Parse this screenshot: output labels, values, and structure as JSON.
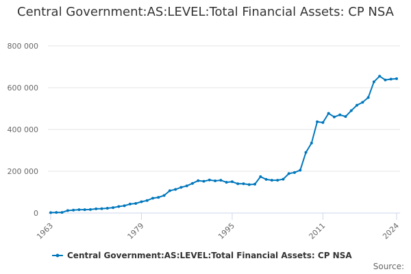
{
  "chart_data": {
    "type": "line",
    "title": "Central Government:AS:LEVEL:Total Financial Assets: CP NSA",
    "xlabel": "",
    "ylabel": "",
    "ylim": [
      0,
      800000
    ],
    "yticks": [
      0,
      200000,
      400000,
      600000,
      800000
    ],
    "ytick_labels": [
      "0",
      "200 000",
      "400 000",
      "600 000",
      "800 000"
    ],
    "xticks": [
      1963,
      1979,
      1995,
      2011,
      2024
    ],
    "xtick_labels": [
      "1963",
      "1979",
      "1995",
      "2011",
      "2024"
    ],
    "grid": true,
    "color": "#0077bb",
    "x": [
      1963,
      1964,
      1965,
      1966,
      1967,
      1968,
      1969,
      1970,
      1971,
      1972,
      1973,
      1974,
      1975,
      1976,
      1977,
      1978,
      1979,
      1980,
      1981,
      1982,
      1983,
      1984,
      1985,
      1986,
      1987,
      1988,
      1989,
      1990,
      1991,
      1992,
      1993,
      1994,
      1995,
      1996,
      1997,
      1998,
      1999,
      2000,
      2001,
      2002,
      2003,
      2004,
      2005,
      2006,
      2007,
      2008,
      2009,
      2010,
      2011,
      2012,
      2013,
      2014,
      2015,
      2016,
      2017,
      2018,
      2019,
      2020,
      2021,
      2022,
      2023,
      2024
    ],
    "series": [
      {
        "name": "Central Government:AS:LEVEL:Total Financial Assets: CP NSA",
        "values": [
          2000,
          3000,
          3000,
          12000,
          14000,
          16000,
          16000,
          17000,
          20000,
          21000,
          23000,
          26000,
          31000,
          35000,
          43000,
          46000,
          54000,
          60000,
          71000,
          75000,
          84000,
          107000,
          113000,
          123000,
          130000,
          142000,
          155000,
          152000,
          158000,
          154000,
          157000,
          147000,
          150000,
          140000,
          140000,
          136000,
          138000,
          174000,
          161000,
          157000,
          157000,
          162000,
          189000,
          194000,
          205000,
          290000,
          335000,
          437000,
          433000,
          477000,
          460000,
          470000,
          462000,
          490000,
          516000,
          530000,
          553000,
          628000,
          655000,
          637000,
          641000,
          643000
        ]
      }
    ],
    "legend": "bottom-left"
  },
  "source_label": "Source:"
}
